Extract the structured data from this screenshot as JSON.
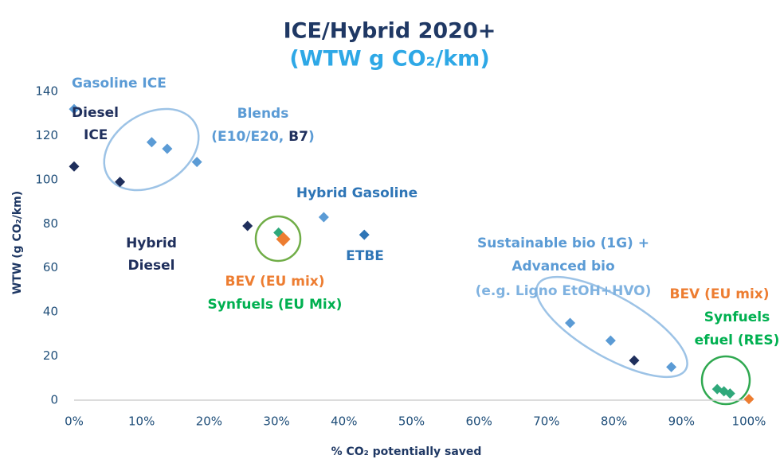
{
  "chart_data": {
    "type": "scatter",
    "title": "ICE/Hybrid 2020+",
    "subtitle": "(WTW g CO₂/km)",
    "x_label": "% CO₂ potentially saved",
    "y_label": "WTW (g CO₂/km)",
    "xlim": [
      0,
      100
    ],
    "ylim": [
      0,
      140
    ],
    "xticks": [
      {
        "value": 0,
        "label": "0%"
      },
      {
        "value": 10,
        "label": "10%"
      },
      {
        "value": 20,
        "label": "20%"
      },
      {
        "value": 30,
        "label": "30%"
      },
      {
        "value": 40,
        "label": "40%"
      },
      {
        "value": 50,
        "label": "50%"
      },
      {
        "value": 60,
        "label": "60%"
      },
      {
        "value": 70,
        "label": "70%"
      },
      {
        "value": 80,
        "label": "80%"
      },
      {
        "value": 90,
        "label": "90%"
      },
      {
        "value": 100,
        "label": "100%"
      }
    ],
    "yticks": [
      0,
      20,
      40,
      60,
      80,
      100,
      120,
      140
    ],
    "grid": false,
    "series": [
      {
        "color": "#5b9bd5",
        "x": [
          0,
          11.5,
          13.8,
          18.2,
          37,
          73.5,
          79.5,
          88.5
        ],
        "values": [
          132,
          117,
          114,
          108,
          83,
          35,
          27,
          15
        ]
      },
      {
        "color": "#2e75b6",
        "x": [
          43
        ],
        "values": [
          75
        ]
      },
      {
        "color": "#1f2f5c",
        "x": [
          0,
          6.8,
          25.7,
          83
        ],
        "values": [
          106,
          99,
          79,
          18
        ]
      },
      {
        "color": "#2fa87a",
        "x": [
          30.3,
          95.3,
          96.3,
          97.2
        ],
        "values": [
          76,
          5,
          4,
          3
        ]
      },
      {
        "color": "#ed7d31",
        "x": [
          31,
          100
        ],
        "values": [
          73,
          0.5
        ]
      }
    ],
    "annotations": [
      [
        {
          "text": "Gasoline ICE",
          "color": "#5b9bd5"
        }
      ],
      [
        {
          "text": "Diesel",
          "color": "#1f2f5c"
        }
      ],
      [
        {
          "text": "ICE",
          "color": "#1f2f5c"
        }
      ],
      [
        {
          "text": "Blends",
          "color": "#5b9bd5"
        }
      ],
      [
        {
          "text": "(E10/E20, ",
          "color": "#5b9bd5"
        },
        {
          "text": "B7",
          "color": "#1f2f5c"
        },
        {
          "text": ")",
          "color": "#5b9bd5"
        }
      ],
      [
        {
          "text": "Hybrid Gasoline",
          "color": "#2e75b6"
        }
      ],
      [
        {
          "text": "Hybrid",
          "color": "#1f2f5c"
        }
      ],
      [
        {
          "text": "Diesel",
          "color": "#1f2f5c"
        }
      ],
      [
        {
          "text": "ETBE",
          "color": "#2e75b6"
        }
      ],
      [
        {
          "text": "BEV (EU mix)",
          "color": "#ed7d31"
        }
      ],
      [
        {
          "text": "Synfuels (EU Mix)",
          "color": "#00b050"
        }
      ],
      [
        {
          "text": "Sustainable bio (1G) +",
          "color": "#5b9bd5"
        }
      ],
      [
        {
          "text": "Advanced bio",
          "color": "#5b9bd5"
        }
      ],
      [
        {
          "text": "(e.g. Ligno EtOH+HVO)",
          "color": "#7fb2e0"
        }
      ],
      [
        {
          "text": "BEV (EU mix)",
          "color": "#ed7d31"
        }
      ],
      [
        {
          "text": "Synfuels",
          "color": "#00b050"
        }
      ],
      [
        {
          "text": "efuel (RES)",
          "color": "#00b050"
        }
      ]
    ]
  }
}
